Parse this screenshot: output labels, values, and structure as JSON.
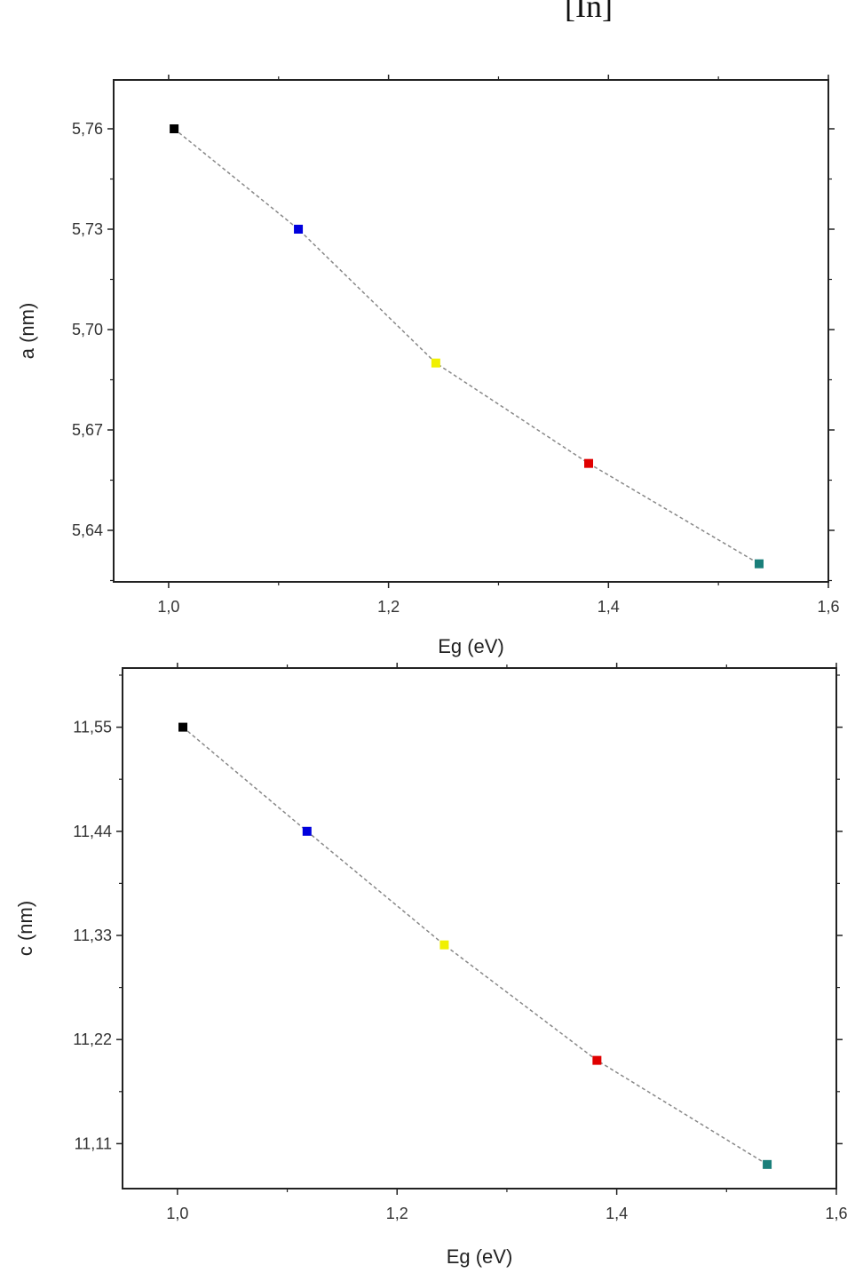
{
  "top_caption": "[In]",
  "chart_data": [
    {
      "type": "scatter",
      "title": "",
      "xlabel": "Eg (eV)",
      "ylabel": "a (nm)",
      "xlim": [
        0.95,
        1.6
      ],
      "ylim": [
        5.6246,
        5.7746
      ],
      "xticks": [
        1.0,
        1.2,
        1.4,
        1.6
      ],
      "xtick_labels": [
        "1,0",
        "1,2",
        "1,4",
        "1,6"
      ],
      "yticks": [
        5.64,
        5.67,
        5.7,
        5.73,
        5.76
      ],
      "ytick_labels": [
        "5,64",
        "5,67",
        "5,70",
        "5,73",
        "5,76"
      ],
      "connector": "dashed gray line",
      "points": [
        {
          "x": 1.005,
          "y": 5.76,
          "color": "#000000"
        },
        {
          "x": 1.118,
          "y": 5.73,
          "color": "#0000dd"
        },
        {
          "x": 1.243,
          "y": 5.69,
          "color": "#f0f000"
        },
        {
          "x": 1.382,
          "y": 5.66,
          "color": "#e00000"
        },
        {
          "x": 1.537,
          "y": 5.63,
          "color": "#1a7f7a"
        }
      ]
    },
    {
      "type": "scatter",
      "title": "",
      "xlabel": "Eg (eV)",
      "ylabel": "c (nm)",
      "xlim": [
        0.95,
        1.6
      ],
      "ylim": [
        11.0625,
        11.6125
      ],
      "xticks": [
        1.0,
        1.2,
        1.4,
        1.6
      ],
      "xtick_labels": [
        "1,0",
        "1,2",
        "1,4",
        "1,6"
      ],
      "yticks": [
        11.11,
        11.22,
        11.33,
        11.44,
        11.55
      ],
      "ytick_labels": [
        "11,11",
        "11,22",
        "11,33",
        "11,44",
        "11,55"
      ],
      "connector": "dashed gray line",
      "points": [
        {
          "x": 1.005,
          "y": 11.55,
          "color": "#000000"
        },
        {
          "x": 1.118,
          "y": 11.44,
          "color": "#0000dd"
        },
        {
          "x": 1.243,
          "y": 11.32,
          "color": "#f0f000"
        },
        {
          "x": 1.382,
          "y": 11.198,
          "color": "#e00000"
        },
        {
          "x": 1.537,
          "y": 11.088,
          "color": "#1a7f7a"
        }
      ]
    }
  ]
}
